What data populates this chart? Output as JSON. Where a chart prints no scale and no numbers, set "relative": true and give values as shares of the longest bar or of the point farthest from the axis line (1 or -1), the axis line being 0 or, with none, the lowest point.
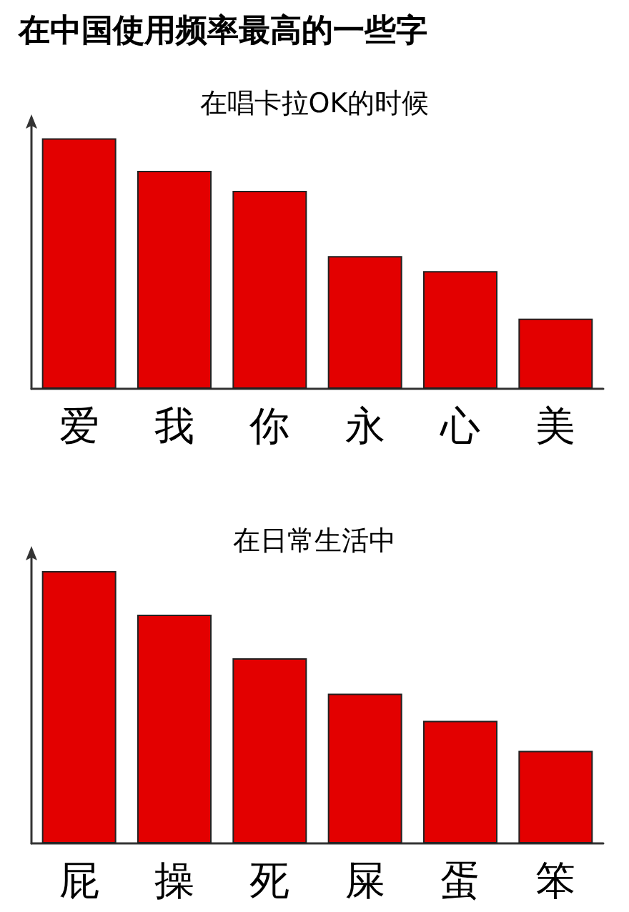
{
  "chart_data": [
    {
      "type": "bar",
      "title": "在中国使用频率最高的一些字",
      "subtitle": "在唱卡拉OK的时候",
      "categories": [
        "爱",
        "我",
        "你",
        "永",
        "心",
        "美"
      ],
      "values": [
        1,
        0.87,
        0.79,
        0.53,
        0.47,
        0.28
      ],
      "color": "#e30000",
      "relative": true,
      "grid": false
    },
    {
      "type": "bar",
      "title": "在日常生活中",
      "categories": [
        "屁",
        "操",
        "死",
        "屎",
        "蛋",
        "笨"
      ],
      "values": [
        1,
        0.84,
        0.68,
        0.55,
        0.45,
        0.34
      ],
      "color": "#e30000",
      "relative": true,
      "grid": false
    }
  ]
}
